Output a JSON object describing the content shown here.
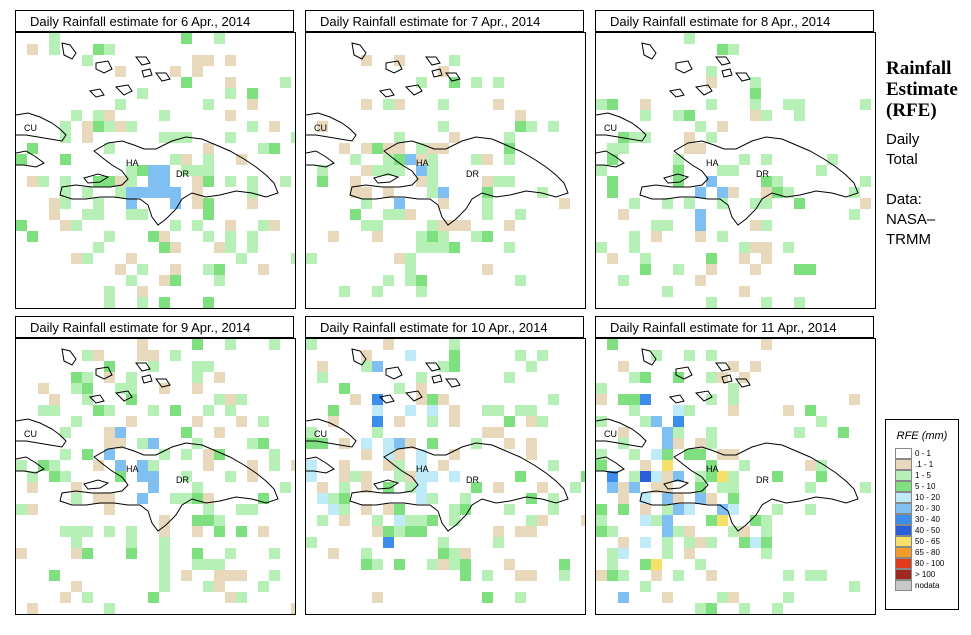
{
  "panels": [
    {
      "title": "Daily Rainfall estimate for  6 Apr., 2014",
      "seed": 6,
      "cx": 130,
      "cy": 150,
      "spread": 90,
      "cells": [
        [
          0.08,
          0.07,
          0.0,
          8
        ],
        [
          0.15,
          0.05,
          0.05,
          12
        ],
        [
          0.2,
          0.0,
          0.1,
          6
        ]
      ]
    },
    {
      "title": "Daily Rainfall estimate for  7 Apr., 2014",
      "seed": 7,
      "cx": 110,
      "cy": 150,
      "spread": 70,
      "cells": [
        [
          0.06,
          0.05,
          0.0,
          4
        ],
        [
          0.1,
          0.02,
          0.03,
          4
        ],
        [
          0.12,
          0.0,
          0.0,
          2
        ]
      ]
    },
    {
      "title": "Daily Rainfall estimate for  8 Apr., 2014",
      "seed": 8,
      "cx": 120,
      "cy": 160,
      "spread": 80,
      "cells": [
        [
          0.07,
          0.07,
          0.01,
          6
        ],
        [
          0.1,
          0.03,
          0.04,
          6
        ],
        [
          0.15,
          0.0,
          0.0,
          3
        ]
      ]
    },
    {
      "title": "Daily Rainfall estimate for  9 Apr., 2014",
      "seed": 9,
      "cx": 110,
      "cy": 120,
      "spread": 120,
      "cells": [
        [
          0.1,
          0.08,
          0.0,
          3
        ],
        [
          0.15,
          0.02,
          0.01,
          3
        ],
        [
          0.2,
          0.0,
          0.0,
          1
        ]
      ]
    },
    {
      "title": "Daily Rainfall estimate for  10 Apr., 2014",
      "seed": 10,
      "cx": 90,
      "cy": 120,
      "spread": 100,
      "cells": [
        [
          0.35,
          0.1,
          0.18,
          0
        ],
        [
          0.45,
          0.05,
          0.12,
          0
        ],
        [
          0.4,
          0.02,
          0.2,
          0
        ]
      ]
    },
    {
      "title": "Daily Rainfall estimate for  11 Apr., 2014",
      "seed": 11,
      "cx": 60,
      "cy": 150,
      "spread": 100,
      "cells": [
        [
          0.3,
          0.1,
          0.15,
          0
        ],
        [
          0.38,
          0.04,
          0.14,
          0
        ],
        [
          0.3,
          0.02,
          0.2,
          0
        ]
      ]
    }
  ],
  "map_labels": {
    "cu": "CU",
    "ha": "HA",
    "dr": "DR"
  },
  "side": {
    "title_lines": [
      "Rainfall",
      "Estimate",
      "(RFE)"
    ],
    "daily_lines": [
      "Daily",
      "Total"
    ],
    "data_lines": [
      "Data:",
      "NASA–",
      "TRMM"
    ]
  },
  "legend": {
    "title": "RFE (mm)",
    "items": [
      {
        "label": "0 - 1",
        "color": "#ffffff"
      },
      {
        "label": ".1 - 1",
        "color": "#e8d8bc"
      },
      {
        "label": "1 - 5",
        "color": "#b6f0b6"
      },
      {
        "label": "5 - 10",
        "color": "#7ee07e"
      },
      {
        "label": "10 - 20",
        "color": "#bfeaf8"
      },
      {
        "label": "20 - 30",
        "color": "#7fbff2"
      },
      {
        "label": "30 - 40",
        "color": "#3d8ded"
      },
      {
        "label": "40 - 50",
        "color": "#2a5fd9"
      },
      {
        "label": "50 - 65",
        "color": "#f5e06a"
      },
      {
        "label": "65 - 80",
        "color": "#f59b2a"
      },
      {
        "label": "80 - 100",
        "color": "#e03c1a"
      },
      {
        "label": "> 100",
        "color": "#a0281e"
      },
      {
        "label": "nodata",
        "color": "#c8c8c8"
      }
    ]
  }
}
